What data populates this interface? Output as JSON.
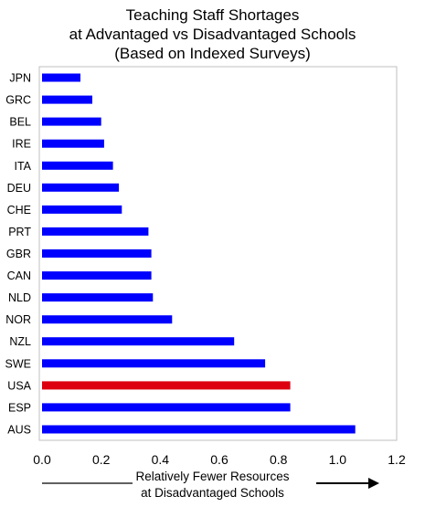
{
  "chart_data": {
    "type": "bar",
    "orientation": "horizontal",
    "title_lines": [
      "Teaching Staff Shortages",
      "at Advantaged vs Disadvantaged Schools",
      "(Based on Indexed Surveys)"
    ],
    "xlabel_lines": [
      "Relatively Fewer Resources",
      "at Disadvantaged Schools"
    ],
    "categories": [
      "JPN",
      "GRC",
      "BEL",
      "IRE",
      "ITA",
      "DEU",
      "CHE",
      "PRT",
      "GBR",
      "CAN",
      "NLD",
      "NOR",
      "NZL",
      "SWE",
      "USA",
      "ESP",
      "AUS"
    ],
    "values": [
      0.13,
      0.17,
      0.2,
      0.21,
      0.24,
      0.26,
      0.27,
      0.36,
      0.37,
      0.37,
      0.375,
      0.44,
      0.65,
      0.755,
      0.84,
      0.84,
      1.06
    ],
    "xlim": [
      0,
      1.2
    ],
    "xticks": [
      "0.0",
      "0.2",
      "0.4",
      "0.6",
      "0.8",
      "1.0",
      "1.2"
    ],
    "grid": false,
    "colors": {
      "default_bar": "#0000ff",
      "highlight_bar": "#dd0011",
      "highlight_category": "USA"
    }
  }
}
